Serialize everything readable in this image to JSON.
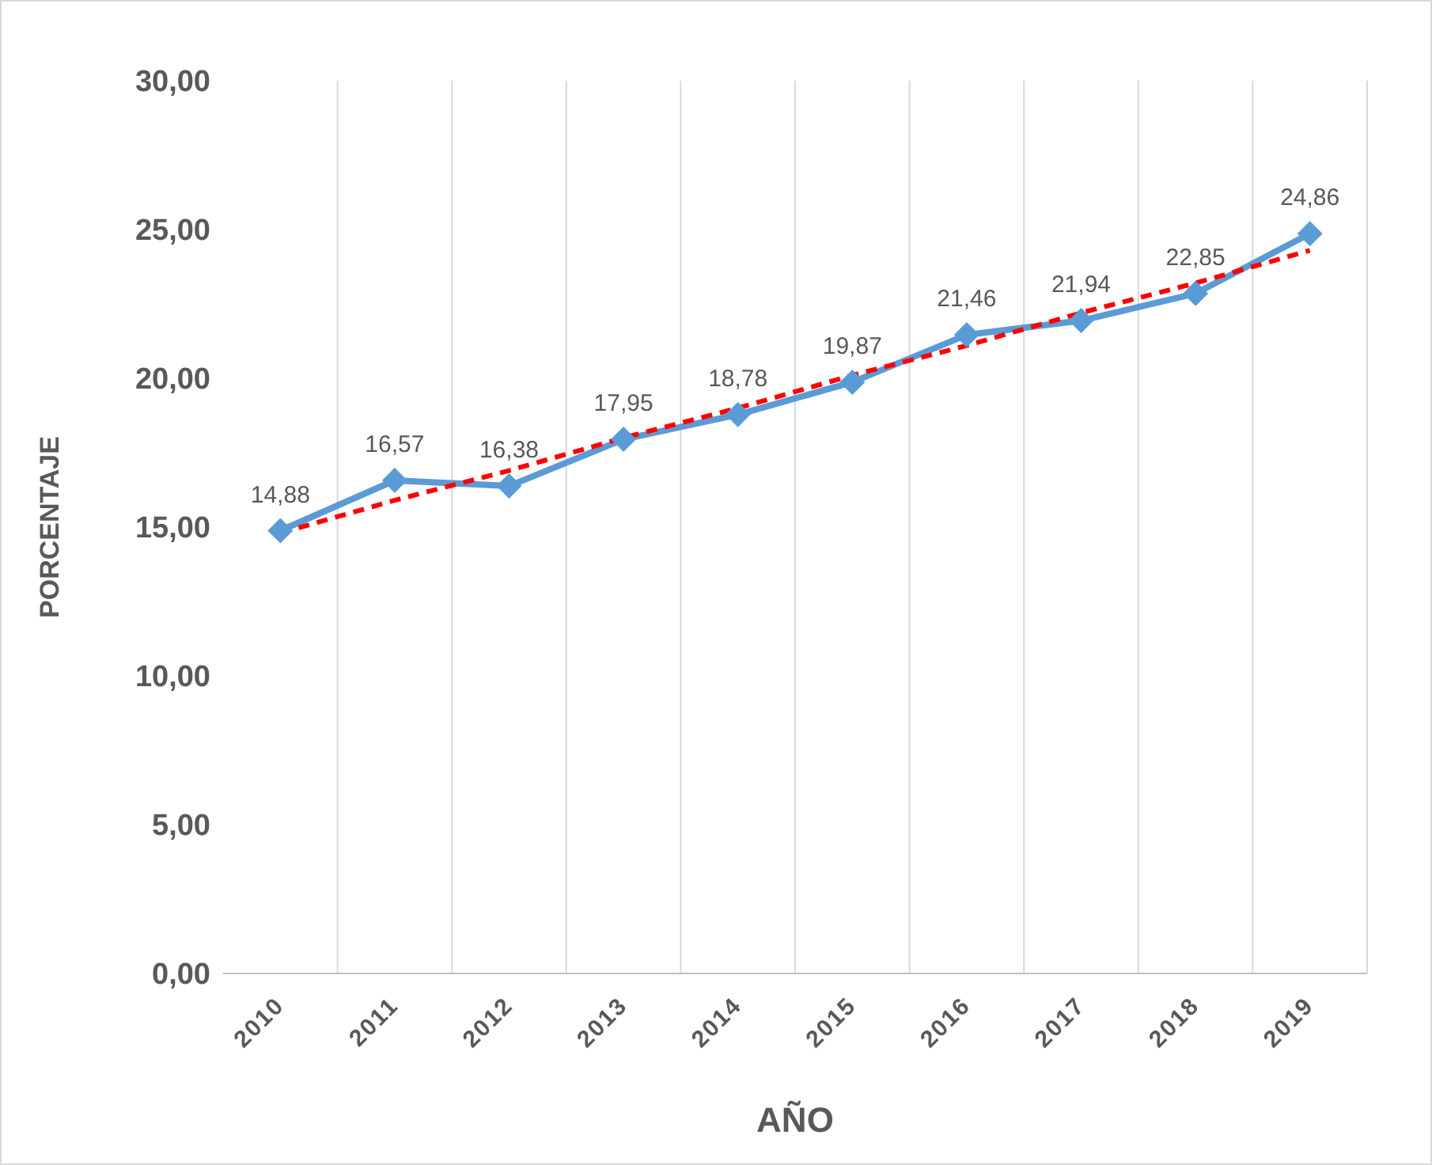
{
  "chart_data": {
    "type": "line",
    "xlabel": "AÑO",
    "ylabel": "PORCENTAJE",
    "categories": [
      "2010",
      "2011",
      "2012",
      "2013",
      "2014",
      "2015",
      "2016",
      "2017",
      "2018",
      "2019"
    ],
    "series": [
      {
        "color": "#5b9bd5",
        "marker": "diamond",
        "values": [
          14.88,
          16.57,
          16.38,
          17.95,
          18.78,
          19.87,
          21.46,
          21.94,
          22.85,
          24.86
        ],
        "value_labels": [
          "14,88",
          "16,57",
          "16,38",
          "17,95",
          "18,78",
          "19,87",
          "21,46",
          "21,94",
          "22,85",
          "24,86"
        ]
      },
      {
        "type": "line",
        "values": [
          14.8,
          15.9,
          16.9,
          18.0,
          19.0,
          20.1,
          21.1,
          22.2,
          23.2,
          24.3
        ],
        "color": "#ff0000",
        "line_style": "dashed",
        "marker": "none"
      }
    ],
    "ylim": [
      0,
      30
    ],
    "yticks": [
      {
        "value": 0,
        "label": "0,00"
      },
      {
        "value": 5,
        "label": "5,00"
      },
      {
        "value": 10,
        "label": "10,00"
      },
      {
        "value": 15,
        "label": "15,00"
      },
      {
        "value": 20,
        "label": "20,00"
      },
      {
        "value": 25,
        "label": "25,00"
      },
      {
        "value": 30,
        "label": "30,00"
      }
    ],
    "grid": "x",
    "legend": false
  }
}
